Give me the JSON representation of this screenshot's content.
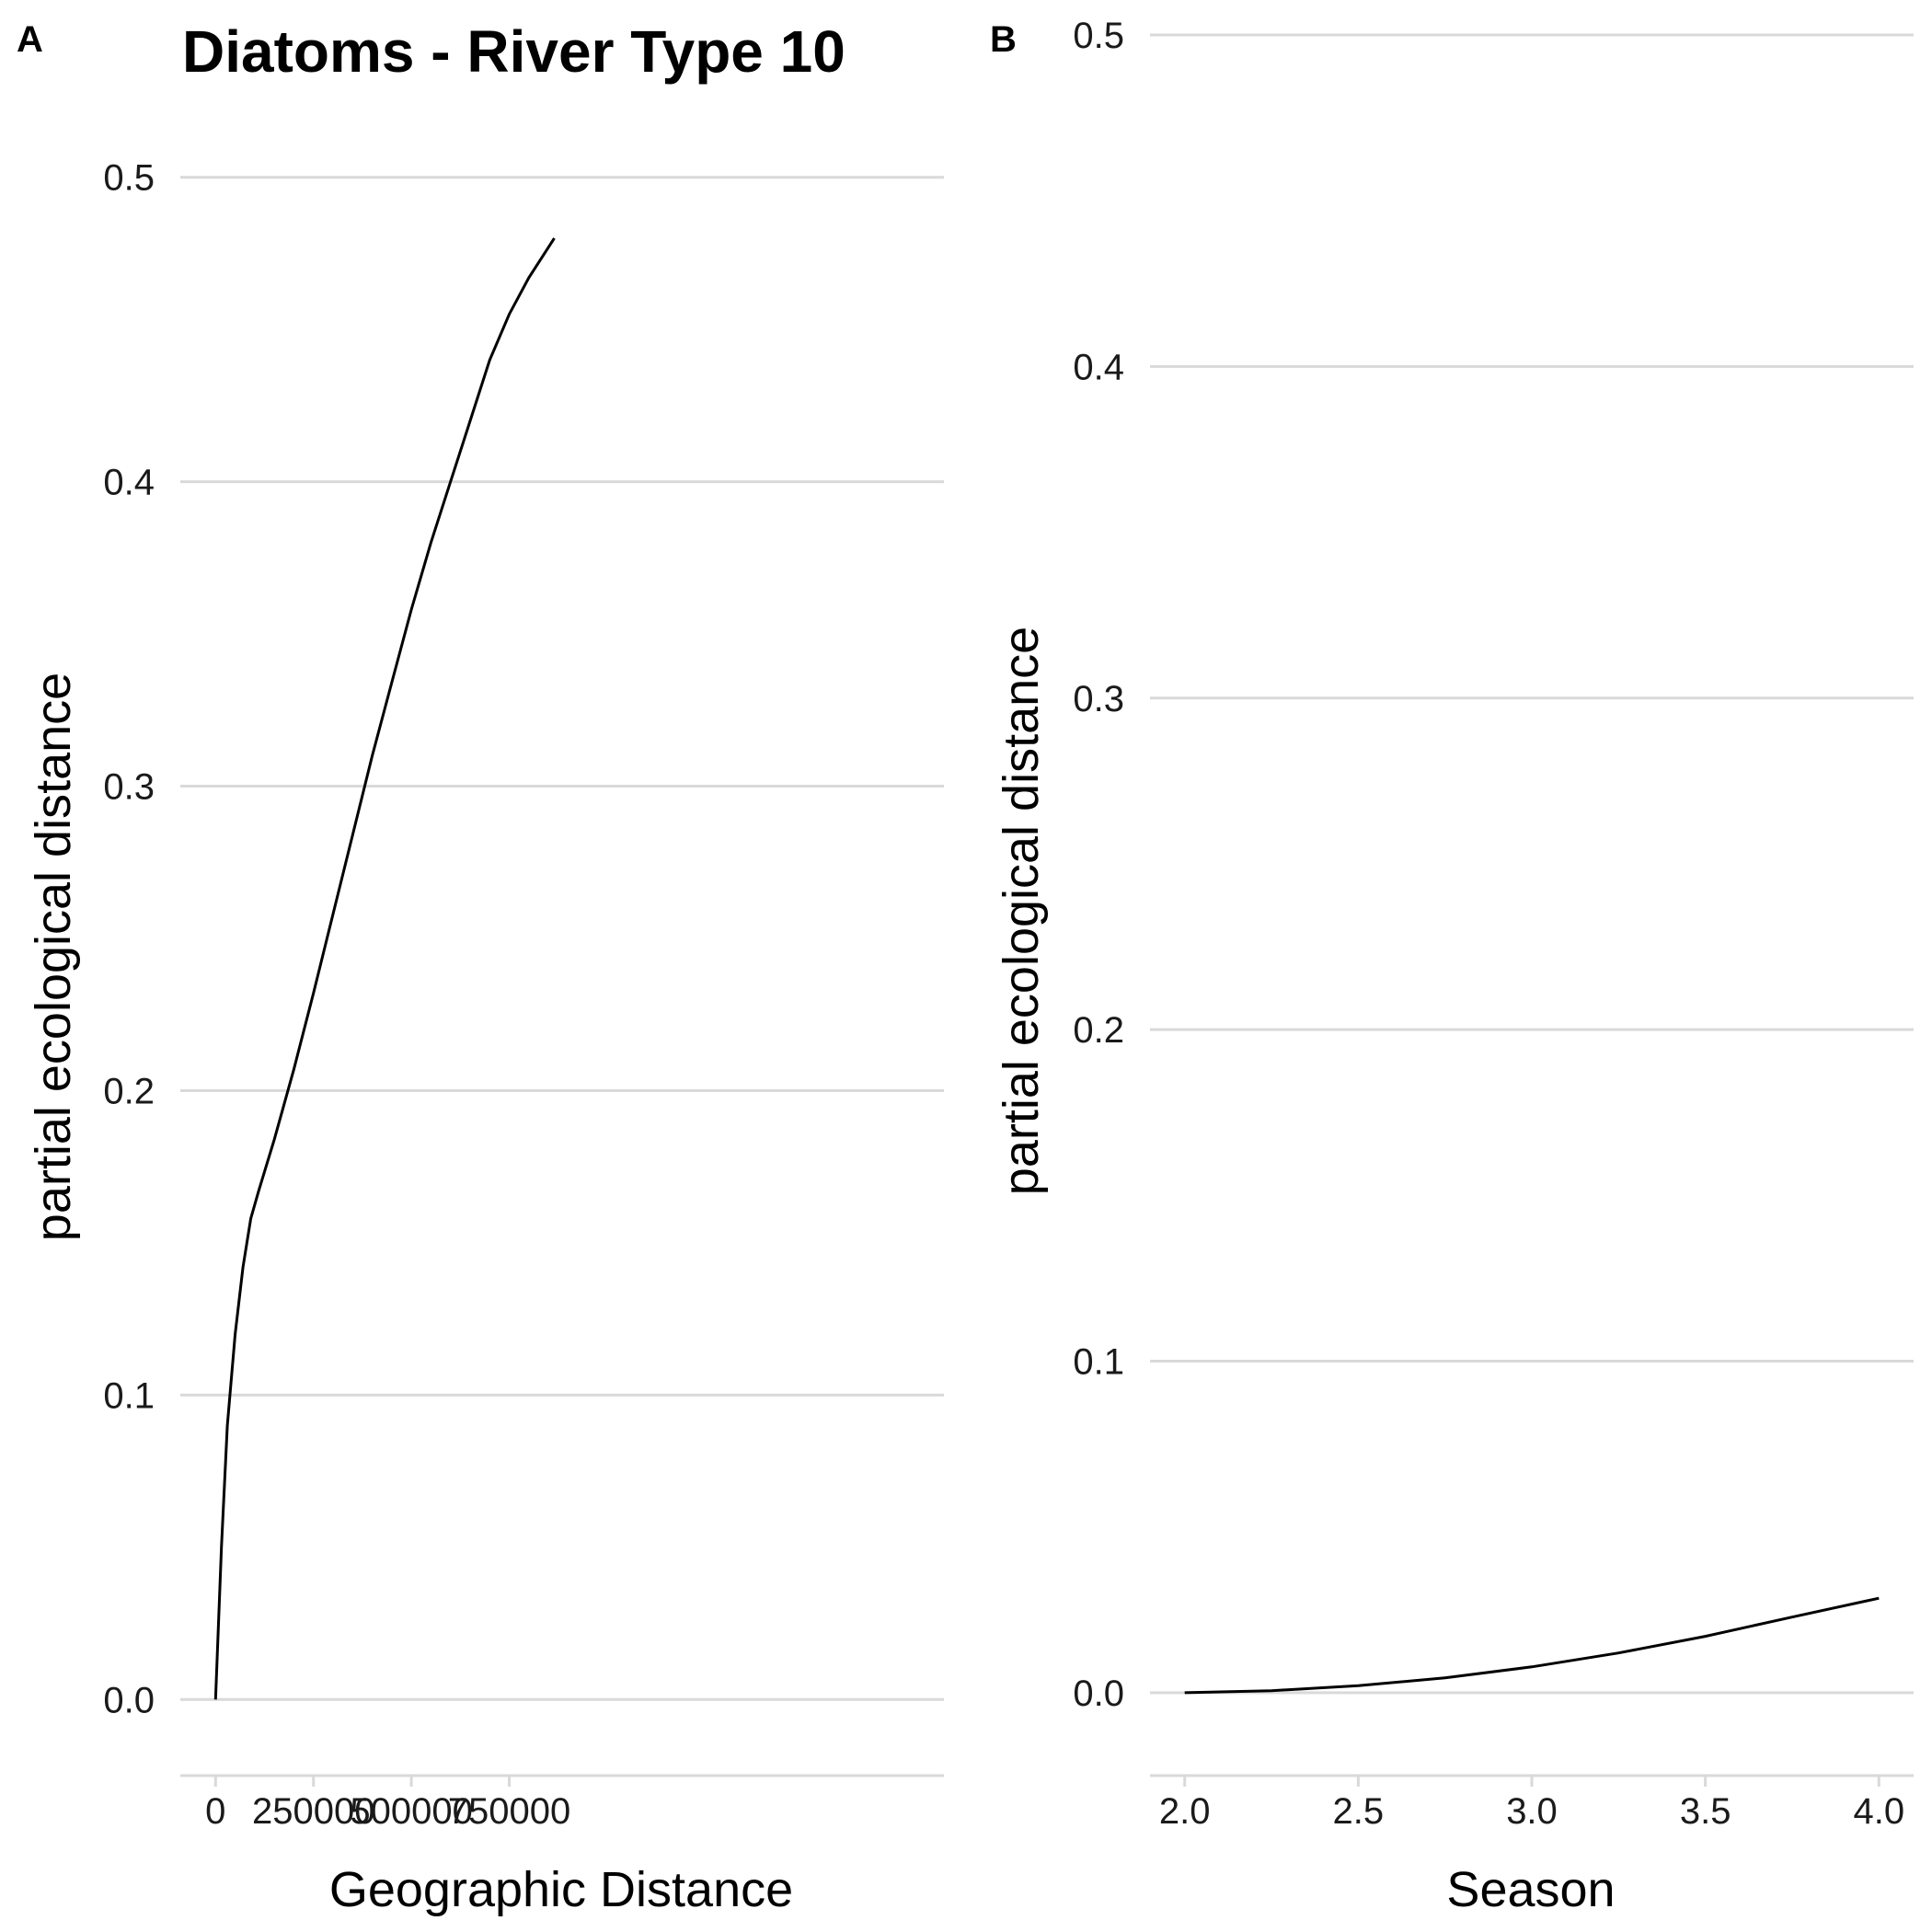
{
  "chart_data": [
    {
      "type": "line",
      "panel_label": "A",
      "title": "Diatoms - River Type 10",
      "xlabel": "Geographic Distance",
      "ylabel": "partial ecological distance",
      "xlim": [
        -90000,
        1860000
      ],
      "ylim": [
        -0.025,
        0.525
      ],
      "x_ticks": [
        0,
        250000,
        500000,
        750000
      ],
      "x_tick_labels": [
        "0",
        "250000",
        "500000",
        "750000"
      ],
      "y_ticks": [
        0.0,
        0.1,
        0.2,
        0.3,
        0.4,
        0.5
      ],
      "y_tick_labels": [
        "0.0",
        "0.1",
        "0.2",
        "0.3",
        "0.4",
        "0.5"
      ],
      "grid": "horizontal major",
      "series_color": "#000000",
      "x": [
        0,
        15000,
        30000,
        50000,
        70000,
        90000,
        110000,
        150000,
        200000,
        250000,
        300000,
        350000,
        400000,
        450000,
        500000,
        550000,
        600000,
        650000,
        700000,
        750000,
        800000,
        865000
      ],
      "y": [
        0.0,
        0.05,
        0.09,
        0.12,
        0.142,
        0.158,
        0.167,
        0.184,
        0.207,
        0.232,
        0.258,
        0.284,
        0.31,
        0.334,
        0.358,
        0.38,
        0.4,
        0.42,
        0.44,
        0.455,
        0.467,
        0.48
      ]
    },
    {
      "type": "line",
      "panel_label": "B",
      "title": "",
      "xlabel": "Season",
      "ylabel": "partial ecological distance",
      "xlim": [
        1.9,
        4.1
      ],
      "ylim": [
        -0.025,
        0.505
      ],
      "x_ticks": [
        2.0,
        2.5,
        3.0,
        3.5,
        4.0
      ],
      "x_tick_labels": [
        "2.0",
        "2.5",
        "3.0",
        "3.5",
        "4.0"
      ],
      "y_ticks": [
        0.0,
        0.1,
        0.2,
        0.3,
        0.4,
        0.5
      ],
      "y_tick_labels": [
        "0.0",
        "0.1",
        "0.2",
        "0.3",
        "0.4",
        "0.5"
      ],
      "grid": "horizontal major",
      "series_color": "#000000",
      "x": [
        2.0,
        2.25,
        2.5,
        2.75,
        3.0,
        3.25,
        3.5,
        3.75,
        4.0
      ],
      "y": [
        0.0,
        0.0006,
        0.0021,
        0.0045,
        0.0078,
        0.012,
        0.017,
        0.0228,
        0.0285
      ]
    }
  ]
}
